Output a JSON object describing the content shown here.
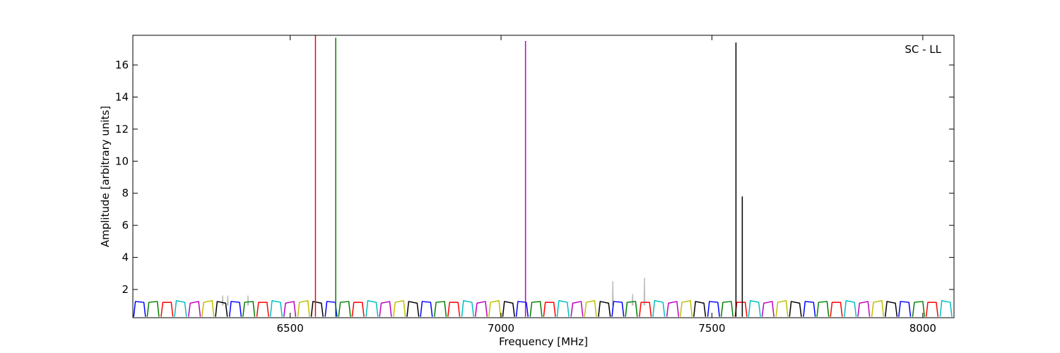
{
  "chart_data": {
    "type": "line",
    "xlabel": "Frequency [MHz]",
    "ylabel": "Amplitude [arbitrary units]",
    "annotation": "SC - LL",
    "xlim": [
      6127,
      8074
    ],
    "ylim": [
      0.24,
      17.85
    ],
    "xticks": [
      6500,
      7000,
      7500,
      8000
    ],
    "yticks": [
      2,
      4,
      6,
      8,
      10,
      12,
      14,
      16
    ],
    "series": [
      {
        "color": "#bfbfbf",
        "x": [
          6339,
          6340,
          6341,
          6342,
          6351,
          6352,
          6353,
          6354,
          6399,
          6400,
          6401,
          6402,
          7264,
          7265,
          7266,
          7267,
          7311,
          7312,
          7313,
          7314,
          7339,
          7340,
          7341,
          7342
        ],
        "values": [
          1.0,
          1.6,
          1.0,
          null,
          1.0,
          1.6,
          1.0,
          null,
          1.0,
          1.6,
          1.0,
          null,
          1.0,
          2.5,
          1.0,
          null,
          1.0,
          1.7,
          1.0,
          null,
          1.0,
          2.7,
          1.0,
          null
        ]
      },
      {
        "color": "#0000ff",
        "x": [
          6129,
          6133,
          6153,
          6157,
          6158,
          6356,
          6360,
          6380,
          6384,
          6385,
          6583,
          6587,
          6607,
          6611,
          6612,
          6809,
          6813,
          6833,
          6837,
          6838,
          7036,
          7040,
          7060,
          7064,
          7065,
          7263,
          7267,
          7287,
          7291,
          7292,
          7490,
          7494,
          7514,
          7518,
          7519,
          7717,
          7721,
          7741,
          7745,
          7746,
          7943,
          7947,
          7967,
          7971,
          7972
        ],
        "values": [
          0.3,
          1.25,
          1.2,
          0.3,
          null,
          0.3,
          1.25,
          1.2,
          0.3,
          null,
          0.3,
          1.25,
          1.2,
          0.3,
          null,
          0.3,
          1.25,
          1.2,
          0.3,
          null,
          0.3,
          1.25,
          1.2,
          0.3,
          null,
          0.3,
          1.25,
          1.2,
          0.3,
          null,
          0.3,
          1.25,
          1.2,
          0.3,
          null,
          0.3,
          1.25,
          1.2,
          0.3,
          null,
          0.3,
          1.25,
          1.2,
          0.3,
          null
        ]
      },
      {
        "color": "#008000",
        "x": [
          6161,
          6165,
          6185,
          6189,
          6190,
          6388,
          6392,
          6412,
          6416,
          6417,
          6615,
          6619,
          6639,
          6643,
          6644,
          6842,
          6846,
          6866,
          6870,
          6871,
          7069,
          7073,
          7093,
          7097,
          7098,
          7295,
          7299,
          7319,
          7323,
          7324,
          7522,
          7526,
          7546,
          7550,
          7551,
          7749,
          7753,
          7773,
          7777,
          7778,
          7976,
          7980,
          8000,
          8004,
          8005
        ],
        "values": [
          0.3,
          1.2,
          1.25,
          0.3,
          null,
          0.3,
          1.2,
          1.25,
          0.3,
          null,
          0.3,
          1.2,
          1.25,
          0.3,
          null,
          0.3,
          1.2,
          1.25,
          0.3,
          null,
          0.3,
          1.2,
          1.25,
          0.3,
          null,
          0.3,
          1.2,
          1.25,
          0.3,
          null,
          0.3,
          1.2,
          1.25,
          0.3,
          null,
          0.3,
          1.2,
          1.25,
          0.3,
          null,
          0.3,
          1.2,
          1.25,
          0.3,
          null
        ]
      },
      {
        "color": "#ff0000",
        "x": [
          6194,
          6198,
          6218,
          6222,
          6223,
          6421,
          6425,
          6445,
          6449,
          6450,
          6647,
          6651,
          6671,
          6675,
          6676,
          6874,
          6878,
          6898,
          6902,
          6903,
          7101,
          7105,
          7125,
          7129,
          7130,
          7328,
          7332,
          7352,
          7356,
          7357,
          7555,
          7559,
          7579,
          7583,
          7584,
          7781,
          7785,
          7805,
          7809,
          7810,
          8008,
          8012,
          8032,
          8036,
          8037
        ],
        "values": [
          0.3,
          1.2,
          1.2,
          0.3,
          null,
          0.3,
          1.2,
          1.2,
          0.3,
          null,
          0.3,
          1.2,
          1.2,
          0.3,
          null,
          0.3,
          1.2,
          1.2,
          0.3,
          null,
          0.3,
          1.2,
          1.2,
          0.3,
          null,
          0.3,
          1.2,
          1.2,
          0.3,
          null,
          0.3,
          1.2,
          1.2,
          0.3,
          null,
          0.3,
          1.2,
          1.2,
          0.3,
          null,
          0.3,
          1.2,
          1.2,
          0.3,
          null
        ]
      },
      {
        "color": "#00bfbf",
        "x": [
          6226,
          6230,
          6250,
          6254,
          6255,
          6453,
          6457,
          6477,
          6481,
          6482,
          6680,
          6684,
          6704,
          6708,
          6709,
          6907,
          6911,
          6931,
          6935,
          6936,
          7133,
          7137,
          7157,
          7161,
          7162,
          7360,
          7364,
          7384,
          7388,
          7389,
          7587,
          7591,
          7611,
          7615,
          7616,
          7814,
          7818,
          7838,
          7842,
          7843,
          8041,
          8045,
          8065,
          8069,
          8070
        ],
        "values": [
          0.3,
          1.3,
          1.2,
          0.3,
          null,
          0.3,
          1.3,
          1.2,
          0.3,
          null,
          0.3,
          1.3,
          1.2,
          0.3,
          null,
          0.3,
          1.3,
          1.2,
          0.3,
          null,
          0.3,
          1.3,
          1.2,
          0.3,
          null,
          0.3,
          1.3,
          1.2,
          0.3,
          null,
          0.3,
          1.3,
          1.2,
          0.3,
          null,
          0.3,
          1.3,
          1.2,
          0.3,
          null,
          0.3,
          1.3,
          1.2,
          0.3,
          null
        ]
      },
      {
        "color": "#bf00bf",
        "x": [
          6259,
          6263,
          6283,
          6287,
          6288,
          6485,
          6489,
          6509,
          6513,
          6514,
          6712,
          6716,
          6736,
          6740,
          6741,
          6939,
          6943,
          6963,
          6967,
          6968,
          7166,
          7170,
          7190,
          7194,
          7195,
          7393,
          7397,
          7417,
          7421,
          7422,
          7619,
          7623,
          7643,
          7647,
          7648,
          7846,
          7850,
          7870,
          7874,
          7875
        ],
        "values": [
          0.3,
          1.15,
          1.25,
          0.3,
          null,
          0.3,
          1.15,
          1.25,
          0.3,
          null,
          0.3,
          1.15,
          1.25,
          0.3,
          null,
          0.3,
          1.15,
          1.25,
          0.3,
          null,
          0.3,
          1.15,
          1.25,
          0.3,
          null,
          0.3,
          1.15,
          1.25,
          0.3,
          null,
          0.3,
          1.15,
          1.25,
          0.3,
          null,
          0.3,
          1.15,
          1.25,
          0.3,
          null
        ]
      },
      {
        "color": "#bfbf00",
        "x": [
          6291,
          6295,
          6315,
          6319,
          6320,
          6518,
          6522,
          6542,
          6546,
          6547,
          6745,
          6749,
          6769,
          6773,
          6774,
          6971,
          6975,
          6995,
          6999,
          7000,
          7198,
          7202,
          7222,
          7226,
          7227,
          7425,
          7429,
          7449,
          7453,
          7454,
          7652,
          7656,
          7676,
          7680,
          7681,
          7879,
          7883,
          7903,
          7907,
          7908
        ],
        "values": [
          0.3,
          1.2,
          1.3,
          0.3,
          null,
          0.3,
          1.2,
          1.3,
          0.3,
          null,
          0.3,
          1.2,
          1.3,
          0.3,
          null,
          0.3,
          1.2,
          1.3,
          0.3,
          null,
          0.3,
          1.2,
          1.3,
          0.3,
          null,
          0.3,
          1.2,
          1.3,
          0.3,
          null,
          0.3,
          1.2,
          1.3,
          0.3,
          null,
          0.3,
          1.2,
          1.3,
          0.3,
          null
        ]
      },
      {
        "color": "#000000",
        "x": [
          6323,
          6327,
          6347,
          6351,
          6352,
          6550,
          6554,
          6574,
          6578,
          6579,
          6777,
          6781,
          6801,
          6805,
          6806,
          7004,
          7008,
          7028,
          7032,
          7033,
          7231,
          7235,
          7255,
          7259,
          7260,
          7457,
          7461,
          7481,
          7485,
          7486,
          7684,
          7688,
          7708,
          7712,
          7713,
          7911,
          7915,
          7935,
          7939,
          7940
        ],
        "values": [
          0.3,
          1.25,
          1.15,
          0.3,
          null,
          0.3,
          1.25,
          1.15,
          0.3,
          null,
          0.3,
          1.25,
          1.15,
          0.3,
          null,
          0.3,
          1.25,
          1.15,
          0.3,
          null,
          0.3,
          1.25,
          1.15,
          0.3,
          null,
          0.3,
          1.25,
          1.15,
          0.3,
          null,
          0.3,
          1.25,
          1.15,
          0.3,
          null,
          0.3,
          1.25,
          1.15,
          0.3,
          null
        ]
      },
      {
        "color": "#ff0000",
        "x": [
          6560,
          6560
        ],
        "values": [
          0.3,
          17.85
        ]
      },
      {
        "color": "#008000",
        "x": [
          6608,
          6608
        ],
        "values": [
          0.3,
          17.7
        ]
      },
      {
        "color": "#bf00bf",
        "x": [
          7058,
          7058
        ],
        "values": [
          0.3,
          17.5
        ]
      },
      {
        "color": "#000000",
        "x": [
          7557,
          7557,
          7564,
          7572,
          7572
        ],
        "values": [
          0.3,
          17.4,
          null,
          0.3,
          7.8
        ]
      }
    ]
  }
}
